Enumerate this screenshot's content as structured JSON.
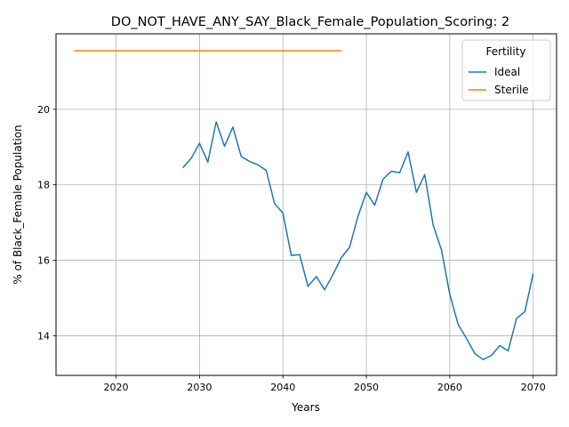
{
  "chart_data": {
    "type": "line",
    "title": "DO_NOT_HAVE_ANY_SAY_Black_Female_Population_Scoring: 2",
    "xlabel": "Years",
    "ylabel": "% of Black_Female Population",
    "xlim": [
      2012.8,
      2072.8
    ],
    "ylim": [
      12.95,
      22.0
    ],
    "xticks": [
      2020,
      2030,
      2040,
      2050,
      2060,
      2070
    ],
    "yticks": [
      14,
      16,
      18,
      20
    ],
    "grid": true,
    "legend": {
      "title": "Fertility",
      "position": "top-right"
    },
    "series": [
      {
        "name": "Ideal",
        "color": "#1f77b4",
        "x": [
          2028,
          2029,
          2030,
          2031,
          2032,
          2033,
          2034,
          2035,
          2036,
          2037,
          2038,
          2039,
          2040,
          2041,
          2042,
          2043,
          2044,
          2045,
          2046,
          2047,
          2048,
          2049,
          2050,
          2051,
          2052,
          2053,
          2054,
          2055,
          2056,
          2057,
          2058,
          2059,
          2060,
          2061,
          2062,
          2063,
          2064,
          2065,
          2066,
          2067,
          2068,
          2069,
          2070
        ],
        "values": [
          18.45,
          18.7,
          19.1,
          18.6,
          19.67,
          19.02,
          19.53,
          18.75,
          18.62,
          18.53,
          18.38,
          17.5,
          17.25,
          16.13,
          16.15,
          15.31,
          15.57,
          15.22,
          15.62,
          16.07,
          16.35,
          17.17,
          17.8,
          17.46,
          18.15,
          18.36,
          18.32,
          18.87,
          17.8,
          18.27,
          16.94,
          16.28,
          15.1,
          14.3,
          13.93,
          13.53,
          13.37,
          13.48,
          13.74,
          13.6,
          14.46,
          14.64,
          15.65
        ]
      },
      {
        "name": "Sterile",
        "color": "#ff7f0e",
        "x": [
          2015,
          2047
        ],
        "values": [
          21.55,
          21.55
        ]
      }
    ]
  }
}
